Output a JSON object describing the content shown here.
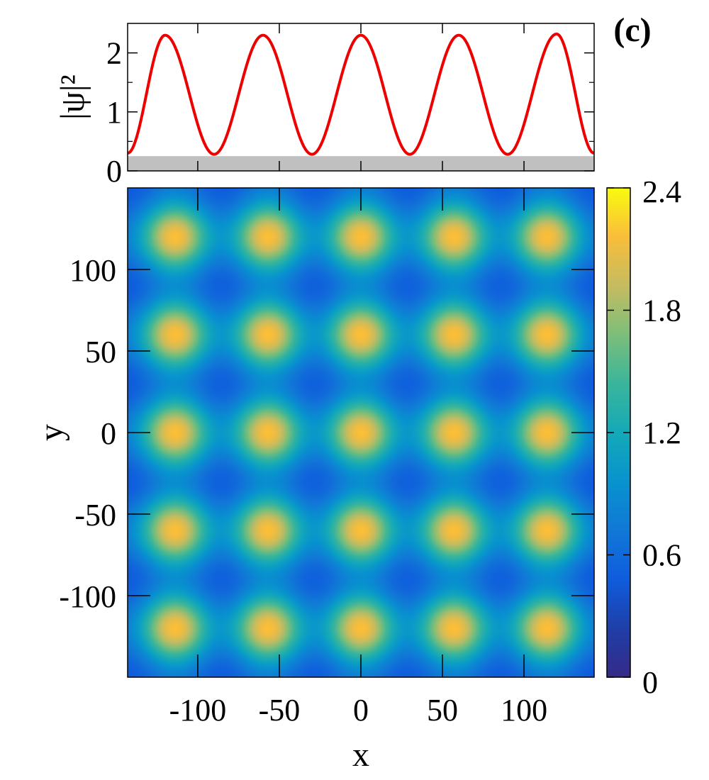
{
  "panel_label": "(c)",
  "chart_data": [
    {
      "type": "line",
      "ylabel": "|ψ|²",
      "xlim": [
        -143,
        143
      ],
      "ylim": [
        0,
        2.5
      ],
      "yticks": [
        0,
        1,
        2
      ],
      "grid": false,
      "baseline_fill": {
        "from": 0,
        "to": 0.25,
        "color": "#c0c0c0"
      },
      "series": [
        {
          "color": "#ee0000",
          "x": [
            -143,
            -120,
            -90,
            -60,
            -30,
            0,
            30,
            60,
            90,
            120,
            143
          ],
          "y": [
            0.3,
            2.3,
            0.28,
            2.3,
            0.28,
            2.3,
            0.28,
            2.3,
            0.28,
            2.32,
            0.3
          ]
        }
      ]
    },
    {
      "type": "heatmap",
      "xlabel": "x",
      "ylabel": "y",
      "xlim": [
        -143,
        143
      ],
      "ylim": [
        -150,
        150
      ],
      "xticks": [
        -100,
        -50,
        0,
        50,
        100
      ],
      "yticks": [
        -100,
        -50,
        0,
        50,
        100
      ],
      "colorbar": {
        "range": [
          0,
          2.4
        ],
        "ticks": [
          "0",
          "0.6",
          "1.2",
          "1.8",
          "2.4"
        ],
        "colormap": "parula"
      },
      "peak_x": [
        -114,
        -57,
        0,
        57,
        114
      ],
      "peak_y": [
        -120,
        -60,
        0,
        60,
        120
      ],
      "peak_value": 2.25,
      "background_value": 0.8,
      "min_value": 0.45
    }
  ]
}
